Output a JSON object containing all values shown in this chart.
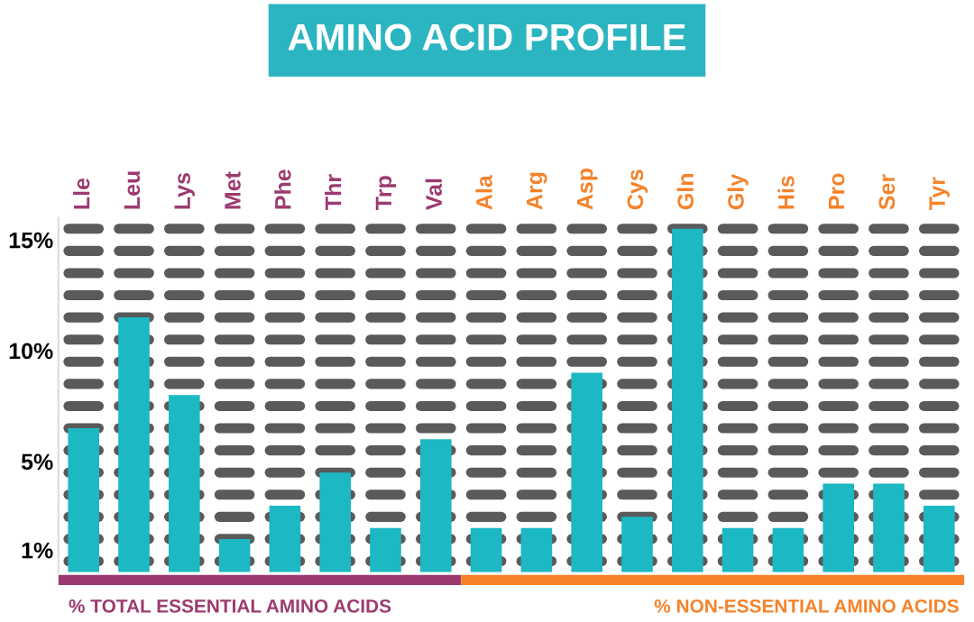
{
  "chart_data": {
    "type": "bar",
    "title": "AMINO ACID PROFILE",
    "categories": [
      "Lle",
      "Leu",
      "Lys",
      "Met",
      "Phe",
      "Thr",
      "Trp",
      "Val",
      "Ala",
      "Arg",
      "Asp",
      "Cys",
      "Gln",
      "Gly",
      "His",
      "Pro",
      "Ser",
      "Tyr"
    ],
    "series": [
      {
        "color": "#1cb8c4",
        "values": [
          6.5,
          11.5,
          8,
          1.5,
          3,
          4.5,
          2,
          6,
          null,
          null,
          null,
          null,
          null,
          null,
          null,
          null,
          null,
          null
        ]
      },
      {
        "color": "#1cb8c4",
        "values": [
          null,
          null,
          null,
          null,
          null,
          null,
          null,
          null,
          2,
          2,
          9,
          2.5,
          15.5,
          2,
          2,
          4,
          4,
          3
        ]
      }
    ],
    "ylim": [
      0,
      16
    ],
    "yticks": [
      {
        "value": 1,
        "label": "1%"
      },
      {
        "value": 5,
        "label": "5%"
      },
      {
        "value": 10,
        "label": "10%"
      },
      {
        "value": 15,
        "label": "15%"
      }
    ],
    "annotations": [
      "% TOTAL ESSENTIAL AMINO ACIDS",
      "% NON-ESSENTIAL AMINO ACIDS"
    ],
    "grid": false
  }
}
